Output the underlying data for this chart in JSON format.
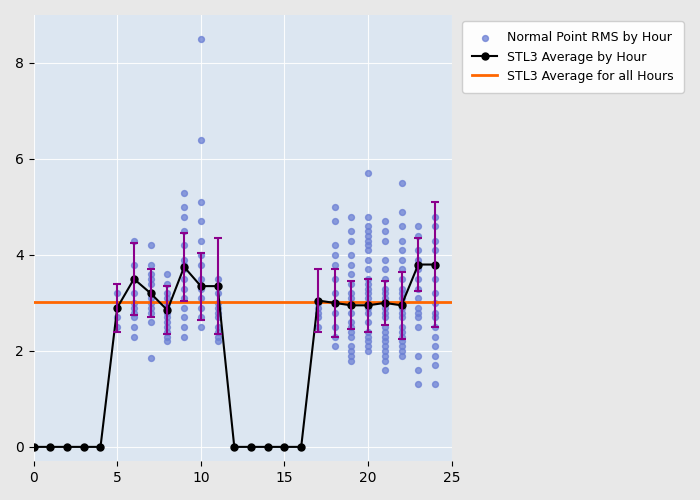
{
  "background_color": "#dce6f1",
  "fig_background_color": "#e8e8e8",
  "scatter_color": "#6b7fd4",
  "line_color": "#000000",
  "errorbar_color": "#8b008b",
  "hline_color": "#ff6600",
  "hline_y": 3.02,
  "xlim": [
    0,
    25
  ],
  "ylim": [
    -0.3,
    9.0
  ],
  "xticks": [
    0,
    5,
    10,
    15,
    20,
    25
  ],
  "yticks": [
    0,
    2,
    4,
    6,
    8
  ],
  "avg_x": [
    0,
    1,
    2,
    3,
    4,
    5,
    6,
    7,
    8,
    9,
    10,
    11,
    12,
    13,
    14,
    15,
    16,
    17,
    18,
    19,
    20,
    21,
    22,
    23,
    24
  ],
  "avg_y": [
    0.0,
    0.0,
    0.0,
    0.0,
    0.0,
    2.9,
    3.5,
    3.2,
    2.85,
    3.75,
    3.35,
    3.35,
    0.0,
    0.0,
    0.0,
    0.0,
    0.0,
    3.05,
    3.0,
    2.95,
    2.95,
    3.0,
    2.95,
    3.8,
    3.8
  ],
  "avg_yerr": [
    0.0,
    0.0,
    0.0,
    0.0,
    0.0,
    0.5,
    0.75,
    0.5,
    0.5,
    0.7,
    0.7,
    1.0,
    0.0,
    0.0,
    0.0,
    0.0,
    0.0,
    0.65,
    0.7,
    0.5,
    0.55,
    0.45,
    0.7,
    0.55,
    1.3
  ],
  "scatter_x": [
    5,
    5,
    5,
    5,
    6,
    6,
    6,
    6,
    6,
    6,
    6,
    6,
    6,
    6,
    7,
    7,
    7,
    7,
    7,
    7,
    7,
    7,
    7,
    7,
    7,
    7,
    8,
    8,
    8,
    8,
    8,
    8,
    8,
    8,
    8,
    8,
    8,
    8,
    8,
    9,
    9,
    9,
    9,
    9,
    9,
    9,
    9,
    9,
    9,
    9,
    9,
    9,
    9,
    9,
    10,
    10,
    10,
    10,
    10,
    10,
    10,
    10,
    10,
    10,
    10,
    10,
    10,
    11,
    11,
    11,
    11,
    11,
    11,
    11,
    11,
    11,
    11,
    17,
    17,
    17,
    17,
    17,
    18,
    18,
    18,
    18,
    18,
    18,
    18,
    18,
    18,
    18,
    18,
    18,
    19,
    19,
    19,
    19,
    19,
    19,
    19,
    19,
    19,
    19,
    19,
    19,
    19,
    19,
    19,
    19,
    19,
    19,
    19,
    20,
    20,
    20,
    20,
    20,
    20,
    20,
    20,
    20,
    20,
    20,
    20,
    20,
    20,
    20,
    20,
    20,
    20,
    20,
    20,
    20,
    20,
    20,
    21,
    21,
    21,
    21,
    21,
    21,
    21,
    21,
    21,
    21,
    21,
    21,
    21,
    21,
    21,
    21,
    21,
    21,
    21,
    21,
    21,
    21,
    22,
    22,
    22,
    22,
    22,
    22,
    22,
    22,
    22,
    22,
    22,
    22,
    22,
    22,
    22,
    22,
    22,
    22,
    22,
    22,
    22,
    22,
    23,
    23,
    23,
    23,
    23,
    23,
    23,
    23,
    23,
    23,
    23,
    23,
    23,
    23,
    23,
    24,
    24,
    24,
    24,
    24,
    24,
    24,
    24,
    24,
    24,
    24,
    24,
    24,
    24,
    24,
    24
  ],
  "scatter_y": [
    3.2,
    2.9,
    2.7,
    2.5,
    4.3,
    3.8,
    3.5,
    3.2,
    3.0,
    2.8,
    2.5,
    2.3,
    2.9,
    2.7,
    4.2,
    3.8,
    3.6,
    3.4,
    3.2,
    3.1,
    3.0,
    2.8,
    2.6,
    3.5,
    2.9,
    1.85,
    3.6,
    3.4,
    3.2,
    3.1,
    2.9,
    2.8,
    2.6,
    2.4,
    2.2,
    3.0,
    2.7,
    2.5,
    2.3,
    5.3,
    5.0,
    4.8,
    4.5,
    4.2,
    3.9,
    3.7,
    3.5,
    3.3,
    3.1,
    2.9,
    2.7,
    2.5,
    2.3,
    3.8,
    8.5,
    6.4,
    5.1,
    4.7,
    4.3,
    4.0,
    3.8,
    3.5,
    3.3,
    3.1,
    2.9,
    2.7,
    2.5,
    3.5,
    3.2,
    3.0,
    2.9,
    2.8,
    2.7,
    2.5,
    2.4,
    2.3,
    2.2,
    3.0,
    2.9,
    2.8,
    2.7,
    2.5,
    5.0,
    4.7,
    4.2,
    4.0,
    3.8,
    3.5,
    3.2,
    3.0,
    2.8,
    2.5,
    2.3,
    2.1,
    4.8,
    4.5,
    4.3,
    4.0,
    3.8,
    3.6,
    3.4,
    3.2,
    3.0,
    2.8,
    2.6,
    2.5,
    2.4,
    2.3,
    2.1,
    2.0,
    1.9,
    1.8,
    3.1,
    4.6,
    4.4,
    4.2,
    3.9,
    3.7,
    3.5,
    3.3,
    3.1,
    2.9,
    2.8,
    2.6,
    2.4,
    2.3,
    2.2,
    2.1,
    2.0,
    3.4,
    3.2,
    5.7,
    4.8,
    4.5,
    4.3,
    4.1,
    3.9,
    3.7,
    3.5,
    3.3,
    3.2,
    3.1,
    3.0,
    2.9,
    2.8,
    2.7,
    2.5,
    2.4,
    2.3,
    2.2,
    2.1,
    2.0,
    1.9,
    1.8,
    1.6,
    4.7,
    4.5,
    4.3,
    4.1,
    3.9,
    3.7,
    3.5,
    3.3,
    3.2,
    3.1,
    3.0,
    2.9,
    2.8,
    2.7,
    2.5,
    2.4,
    2.3,
    2.2,
    2.1,
    2.0,
    1.9,
    4.3,
    5.5,
    4.9,
    4.6,
    4.4,
    4.1,
    3.9,
    3.7,
    3.5,
    3.3,
    3.1,
    2.9,
    2.8,
    2.7,
    2.5,
    1.3,
    1.6,
    1.9,
    4.6,
    4.8,
    4.6,
    4.3,
    4.1,
    3.8,
    3.5,
    3.2,
    3.0,
    2.8,
    2.7,
    2.5,
    2.3,
    2.1,
    1.9,
    1.7,
    1.3
  ],
  "legend_scatter_label": "Normal Point RMS by Hour",
  "legend_line_label": "STL3 Average by Hour",
  "legend_hline_label": "STL3 Average for all Hours"
}
